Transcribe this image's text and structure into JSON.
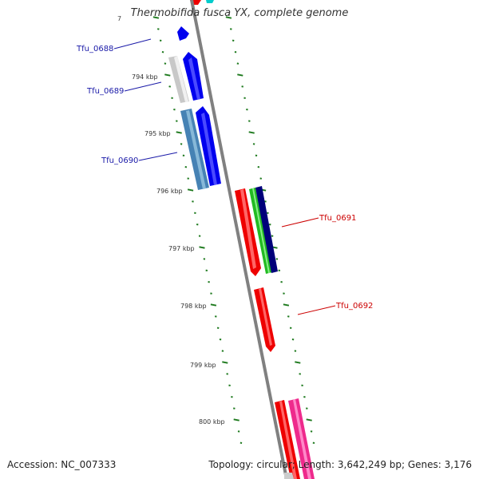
{
  "title": "Thermobifida fusca YX, complete genome",
  "scale_labels": [
    "794 kbp",
    "795 kbp",
    "796 kbp",
    "797 kbp",
    "798 kbp",
    "799 kbp",
    "800 kbp"
  ],
  "genes": [
    {
      "label": "Tfu_0688",
      "side": "left",
      "color": "#1a1aa8"
    },
    {
      "label": "Tfu_0689",
      "side": "left",
      "color": "#1a1aa8"
    },
    {
      "label": "Tfu_0690",
      "side": "left",
      "color": "#1a1aa8"
    },
    {
      "label": "Tfu_0691",
      "side": "right",
      "color": "#cc0000"
    },
    {
      "label": "Tfu_0692",
      "side": "right",
      "color": "#cc0000"
    }
  ],
  "footer": {
    "accession": "Accession: NC_007333",
    "summary": "Topology: circular; Length: 3,642,249 bp; Genes: 3,176"
  },
  "colors": {
    "backbone": "#808080",
    "tick": "#1e7a1e",
    "forward_blue": "#0000ee",
    "reverse_red": "#ee0000"
  }
}
